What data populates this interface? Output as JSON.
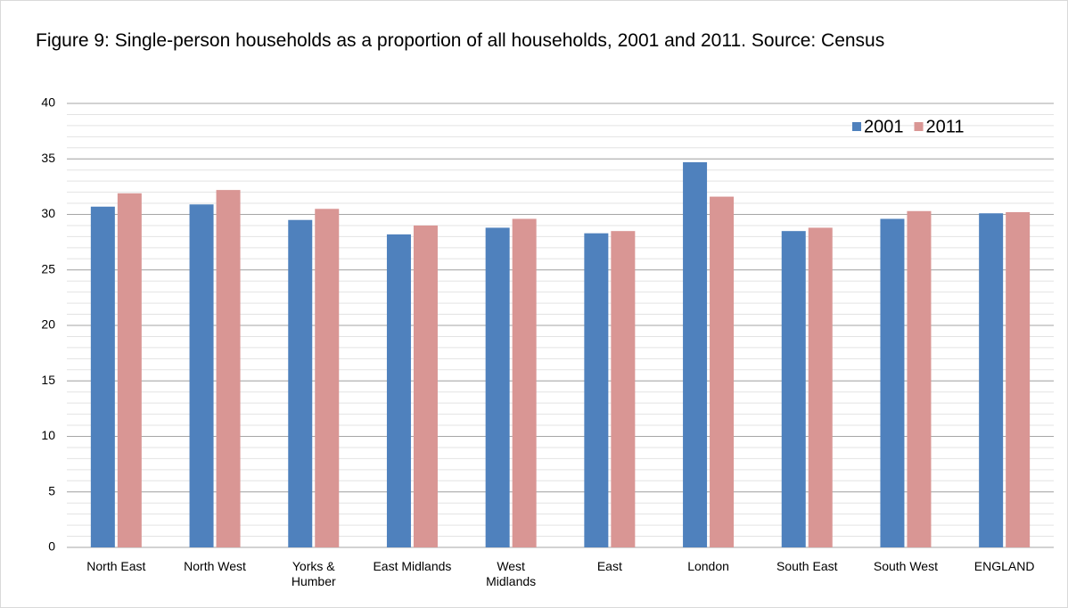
{
  "chart_data": {
    "type": "bar",
    "title": "Figure 9: Single-person households as a proportion of all households, 2001 and 2011. Source: Census",
    "categories": [
      "North East",
      "North West",
      "Yorks & Humber",
      "East Midlands",
      "West Midlands",
      "East",
      "London",
      "South East",
      "South West",
      "ENGLAND"
    ],
    "series": [
      {
        "name": "2001",
        "color": "#4f81bd",
        "values": [
          30.7,
          30.9,
          29.5,
          28.2,
          28.8,
          28.3,
          34.7,
          28.5,
          29.6,
          30.1
        ]
      },
      {
        "name": "2011",
        "color": "#d99694",
        "values": [
          31.9,
          32.2,
          30.5,
          29.0,
          29.6,
          28.5,
          31.6,
          28.8,
          30.3,
          30.2
        ]
      }
    ],
    "ylim": [
      0,
      40
    ],
    "yticks": [
      0,
      5,
      10,
      15,
      20,
      25,
      30,
      35,
      40
    ],
    "grid": true,
    "minor_grid_step": 1,
    "legend": "top-right"
  }
}
